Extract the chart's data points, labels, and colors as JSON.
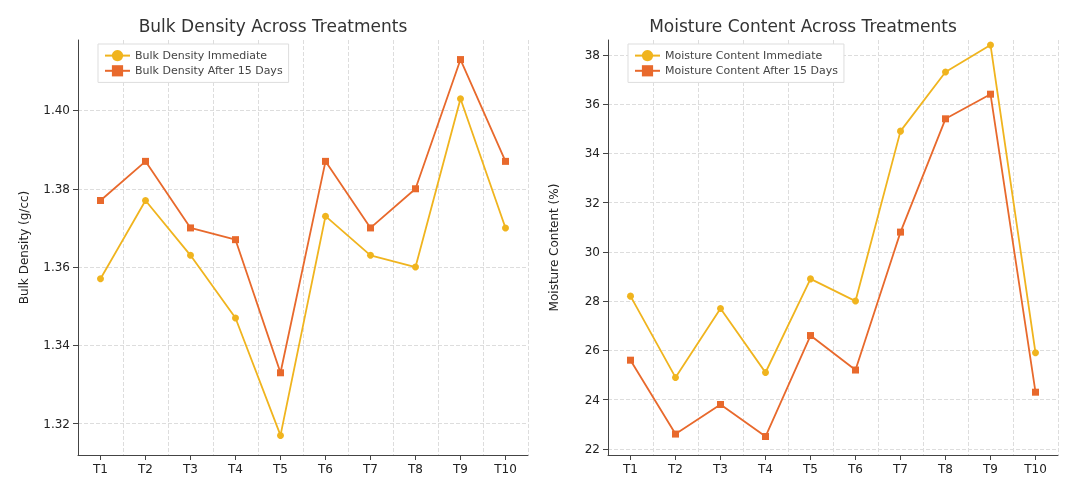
{
  "chart_data": [
    {
      "type": "line",
      "title": "Bulk Density Across Treatments",
      "ylabel": "Bulk Density (g/cc)",
      "categories": [
        "T1",
        "T2",
        "T3",
        "T4",
        "T5",
        "T6",
        "T7",
        "T8",
        "T9",
        "T10"
      ],
      "series": [
        {
          "name": "Bulk Density Immediate",
          "color": "#f0b41e",
          "marker": "circle",
          "values": [
            1.357,
            1.377,
            1.363,
            1.347,
            1.317,
            1.373,
            1.363,
            1.36,
            1.403,
            1.37
          ]
        },
        {
          "name": "Bulk Density After 15 Days",
          "color": "#e8692c",
          "marker": "square",
          "values": [
            1.377,
            1.387,
            1.37,
            1.367,
            1.333,
            1.387,
            1.37,
            1.38,
            1.413,
            1.387
          ]
        }
      ],
      "ylim": [
        1.312,
        1.418
      ],
      "yticks": [
        1.32,
        1.34,
        1.36,
        1.38,
        {
          "value": 1.4,
          "label": "1.40"
        }
      ],
      "grid": true,
      "legend": "top left",
      "line_style": "solid"
    },
    {
      "type": "line",
      "title": "Moisture Content Across Treatments",
      "ylabel": "Moisture Content (%)",
      "categories": [
        "T1",
        "T2",
        "T3",
        "T4",
        "T5",
        "T6",
        "T7",
        "T8",
        "T9",
        "T10"
      ],
      "series": [
        {
          "name": "Moisture Content Immediate",
          "color": "#f0b41e",
          "marker": "circle",
          "values": [
            28.2,
            24.9,
            27.7,
            25.1,
            28.9,
            28.0,
            34.9,
            37.3,
            38.4,
            25.9
          ]
        },
        {
          "name": "Moisture Content After 15 Days",
          "color": "#e8692c",
          "marker": "square",
          "values": [
            25.6,
            22.6,
            23.8,
            22.5,
            26.6,
            25.2,
            30.8,
            35.4,
            36.4,
            24.3
          ]
        }
      ],
      "ylim": [
        21.75,
        38.6
      ],
      "yticks": [
        22,
        24,
        26,
        28,
        30,
        32,
        34,
        36,
        38
      ],
      "grid": true,
      "legend": "top left",
      "line_style": "solid"
    }
  ]
}
